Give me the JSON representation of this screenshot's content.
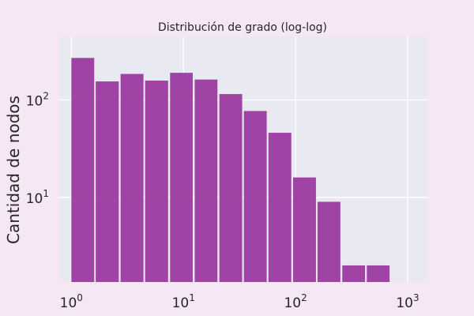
{
  "chart_data": {
    "type": "bar",
    "title": "Distribución de grado (log-log)",
    "xlabel": "",
    "ylabel": "Cantidad de nodos",
    "x_scale": "log",
    "y_scale": "log",
    "xlim": [
      0.78,
      1500
    ],
    "ylim": [
      1.35,
      450
    ],
    "grid": true,
    "legend": "none",
    "bar_color": "#9b3a9f",
    "plot_background": "#e9e9f1",
    "page_background": "#f5e8f4",
    "x_ticks": [
      {
        "value": 1,
        "base": "10",
        "exp": "0"
      },
      {
        "value": 10,
        "base": "10",
        "exp": "1"
      },
      {
        "value": 100,
        "base": "10",
        "exp": "2"
      },
      {
        "value": 1000,
        "base": "10",
        "exp": "3"
      }
    ],
    "y_ticks": [
      {
        "value": 10,
        "base": "10",
        "exp": "1"
      },
      {
        "value": 100,
        "base": "10",
        "exp": "2"
      }
    ],
    "bars": [
      {
        "x0": 1.0,
        "x1": 1.6,
        "value": 270
      },
      {
        "x0": 1.65,
        "x1": 2.65,
        "value": 155
      },
      {
        "x0": 2.75,
        "x1": 4.4,
        "value": 185
      },
      {
        "x0": 4.55,
        "x1": 7.3,
        "value": 158
      },
      {
        "x0": 7.6,
        "x1": 12.1,
        "value": 190
      },
      {
        "x0": 12.6,
        "x1": 20.1,
        "value": 162
      },
      {
        "x0": 20.9,
        "x1": 33.4,
        "value": 115
      },
      {
        "x0": 34.6,
        "x1": 55.3,
        "value": 77
      },
      {
        "x0": 57.3,
        "x1": 91.6,
        "value": 46
      },
      {
        "x0": 95.0,
        "x1": 152.0,
        "value": 16
      },
      {
        "x0": 157.0,
        "x1": 251.0,
        "value": 9
      },
      {
        "x0": 261.0,
        "x1": 417.0,
        "value": 2
      },
      {
        "x0": 432.0,
        "x1": 690.0,
        "value": 2
      }
    ]
  }
}
